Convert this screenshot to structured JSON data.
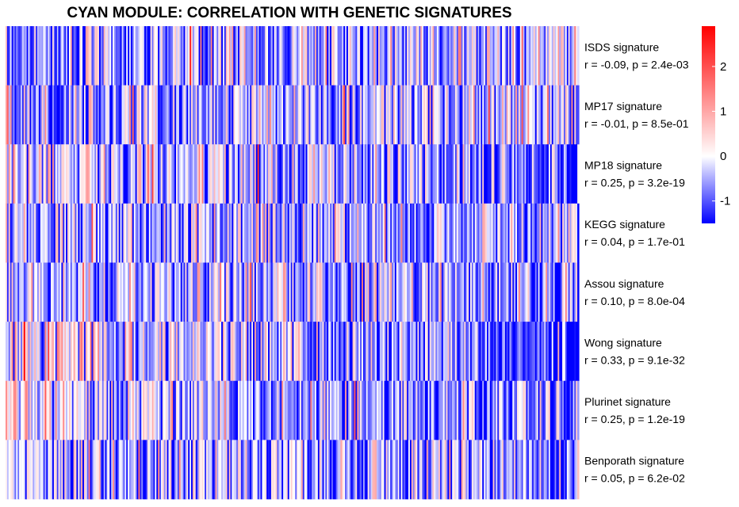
{
  "chart_data": {
    "type": "heatmap",
    "title": "CYAN MODULE: CORRELATION WITH GENETIC SIGNATURES",
    "rows": [
      {
        "name": "ISDS signature",
        "stat": "r = -0.09, p = 2.4e-03",
        "r": -0.09
      },
      {
        "name": "MP17 signature",
        "stat": "r = -0.01, p = 8.5e-01",
        "r": -0.01
      },
      {
        "name": "MP18 signature",
        "stat": "r = 0.25, p = 3.2e-19",
        "r": 0.25
      },
      {
        "name": "KEGG signature",
        "stat": "r = 0.04, p = 1.7e-01",
        "r": 0.04
      },
      {
        "name": "Assou signature",
        "stat": "r = 0.10, p = 8.0e-04",
        "r": 0.1
      },
      {
        "name": "Wong signature",
        "stat": "r = 0.33, p = 9.1e-32",
        "r": 0.33
      },
      {
        "name": "Plurinet signature",
        "stat": "r = 0.25, p = 1.2e-19",
        "r": 0.25
      },
      {
        "name": "Benporath signature",
        "stat": "r = 0.05, p = 6.2e-02",
        "r": 0.05
      }
    ],
    "n_columns": 380,
    "color_scale": {
      "low": "#0000ff",
      "mid": "#ffffff",
      "high": "#ff0000",
      "range": [
        -1.5,
        2.9
      ],
      "ticks": [
        2,
        1,
        0,
        -1
      ]
    },
    "legend_placement": "top-right"
  }
}
